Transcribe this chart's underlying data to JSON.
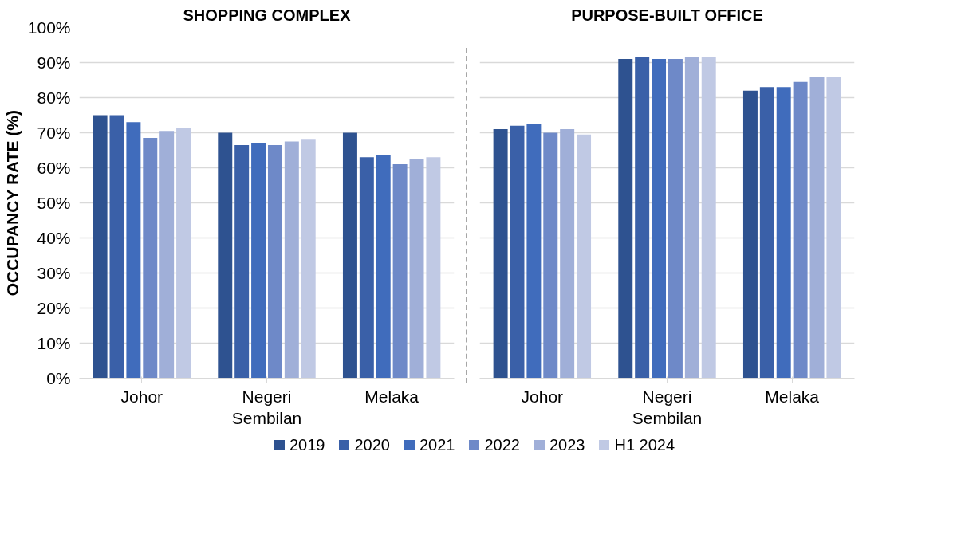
{
  "chart_data": [
    {
      "type": "bar",
      "title": "SHOPPING COMPLEX",
      "ylabel": "OCCUPANCY RATE (%)",
      "categories": [
        "Johor",
        "Negeri Sembilan",
        "Melaka"
      ],
      "ylim": [
        0,
        100
      ],
      "yticks": [
        {
          "value": 0,
          "label": "0%"
        },
        {
          "value": 10,
          "label": "10%"
        },
        {
          "value": 20,
          "label": "20%"
        },
        {
          "value": 30,
          "label": "30%"
        },
        {
          "value": 40,
          "label": "40%"
        },
        {
          "value": 50,
          "label": "50%"
        },
        {
          "value": 60,
          "label": "60%"
        },
        {
          "value": 70,
          "label": "70%"
        },
        {
          "value": 80,
          "label": "80%"
        },
        {
          "value": 90,
          "label": "90%"
        },
        {
          "value": 100,
          "label": "100%"
        }
      ],
      "grid": "y",
      "legend": "bottom",
      "series": [
        {
          "name": "2019",
          "color": "#2e5290",
          "values": [
            75,
            70,
            70
          ]
        },
        {
          "name": "2020",
          "color": "#3a60a8",
          "values": [
            75,
            66.5,
            63
          ]
        },
        {
          "name": "2021",
          "color": "#406cbc",
          "values": [
            73,
            67,
            63.5
          ]
        },
        {
          "name": "2022",
          "color": "#6e89c8",
          "values": [
            68.5,
            66.5,
            61
          ]
        },
        {
          "name": "2023",
          "color": "#a0afd8",
          "values": [
            70.5,
            67.5,
            62.5
          ]
        },
        {
          "name": "H1 2024",
          "color": "#c0c9e4",
          "values": [
            71.5,
            68,
            63
          ]
        }
      ]
    },
    {
      "type": "bar",
      "title": "PURPOSE-BUILT OFFICE",
      "categories": [
        "Johor",
        "Negeri Sembilan",
        "Melaka"
      ],
      "ylim": [
        0,
        100
      ],
      "grid": "y",
      "tick_labels": "x",
      "yticks": [
        0,
        10,
        20,
        30,
        40,
        50,
        60,
        70,
        80,
        90,
        100
      ],
      "series": [
        {
          "color": "#2e5290",
          "values": [
            71,
            91,
            82
          ]
        },
        {
          "color": "#3a60a8",
          "values": [
            72,
            91.5,
            83
          ]
        },
        {
          "color": "#406cbc",
          "values": [
            72.5,
            91,
            83
          ]
        },
        {
          "color": "#6e89c8",
          "values": [
            70,
            91,
            84.5
          ]
        },
        {
          "color": "#a0afd8",
          "values": [
            71,
            91.5,
            86
          ]
        },
        {
          "color": "#c0c9e4",
          "values": [
            69.5,
            91.5,
            86
          ]
        }
      ]
    }
  ]
}
